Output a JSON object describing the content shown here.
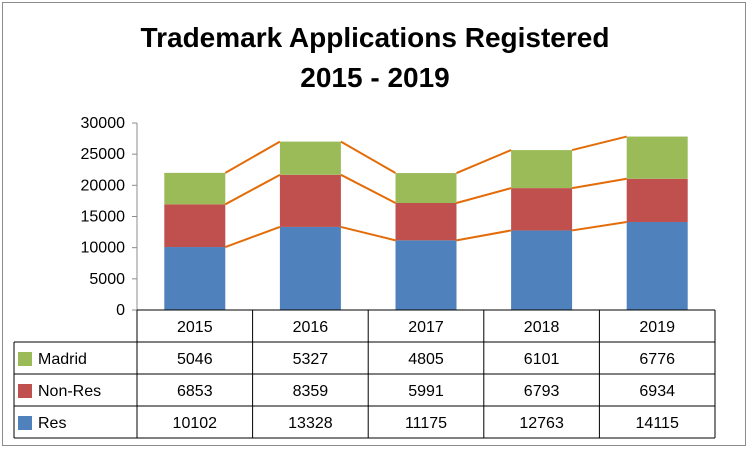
{
  "chart_data": {
    "type": "bar",
    "stacked": true,
    "title_line1": "Trademark Applications Registered",
    "title_line2": "2015 - 2019",
    "categories": [
      "2015",
      "2016",
      "2017",
      "2018",
      "2019"
    ],
    "ylim": [
      0,
      30000
    ],
    "yticks": [
      0,
      5000,
      10000,
      15000,
      20000,
      25000,
      30000
    ],
    "grid": false,
    "legend": "data-table",
    "series_lines": true,
    "series": [
      {
        "name": "Res",
        "color": "#4f81bd",
        "values": [
          10102,
          13328,
          11175,
          12763,
          14115
        ]
      },
      {
        "name": "Non-Res",
        "color": "#c0504d",
        "values": [
          6853,
          8359,
          5991,
          6793,
          6934
        ]
      },
      {
        "name": "Madrid",
        "color": "#9bbb59",
        "values": [
          5046,
          5327,
          4805,
          6101,
          6776
        ]
      }
    ],
    "line_color": "#e36c09"
  }
}
